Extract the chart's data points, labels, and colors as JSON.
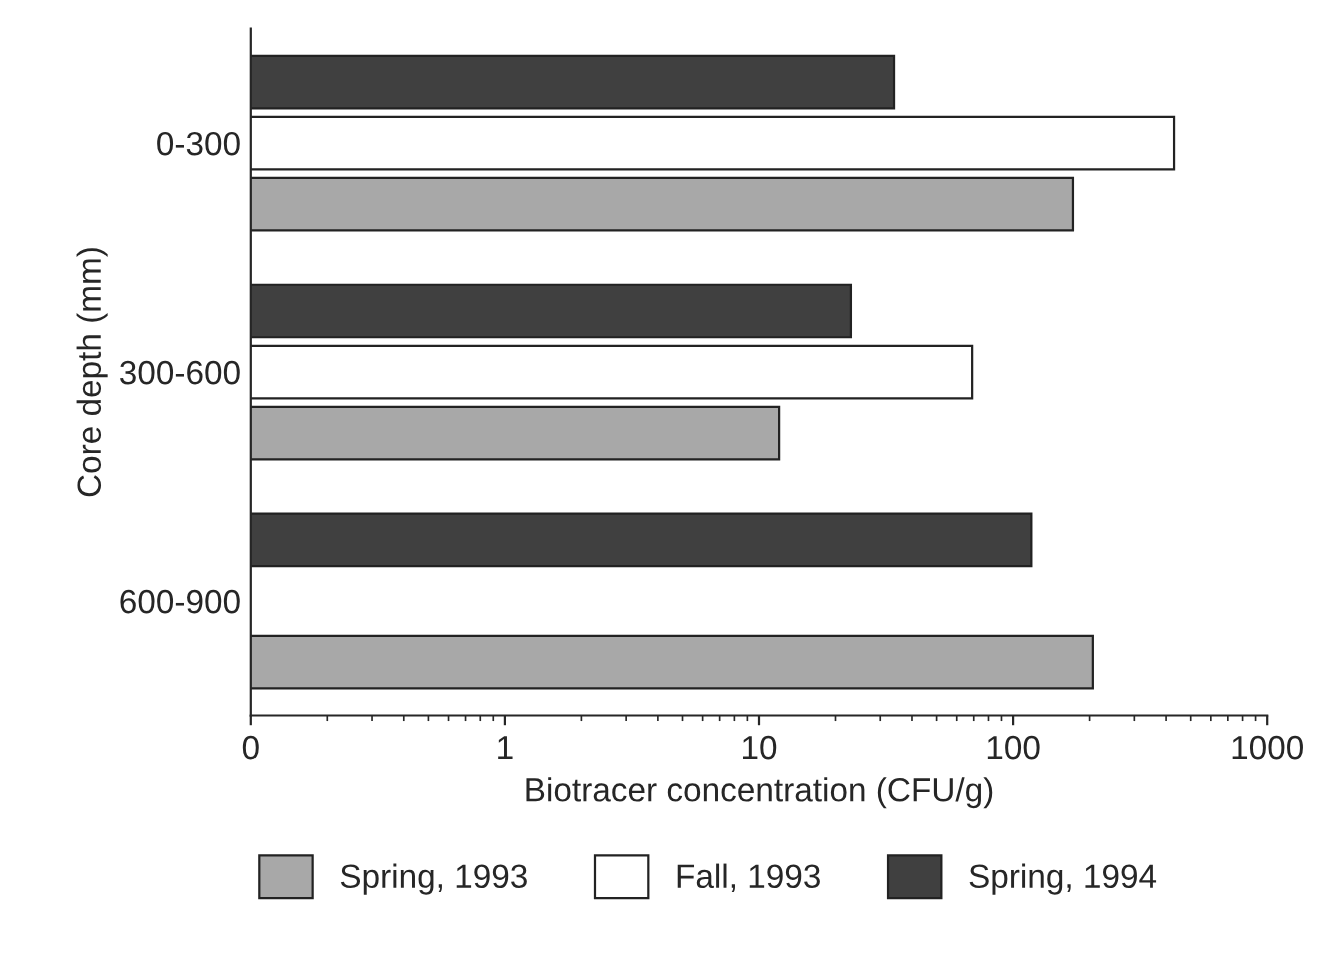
{
  "chart_data": {
    "type": "bar",
    "orientation": "horizontal",
    "xlabel": "Biotracer concentration (CFU/g)",
    "ylabel": "Core depth (mm)",
    "categories": [
      "0-300",
      "300-600",
      "600-900"
    ],
    "series": [
      {
        "name": "Spring, 1993",
        "color": "#a8a8a8",
        "values": [
          172,
          12,
          206
        ]
      },
      {
        "name": "Fall, 1993",
        "color": "#ffffff",
        "values": [
          430,
          69,
          null
        ]
      },
      {
        "name": "Spring, 1994",
        "color": "#404040",
        "values": [
          34,
          23,
          118
        ]
      }
    ],
    "log": "x",
    "xlim": [
      0.1,
      1000
    ],
    "xticks": [
      {
        "value": 0.1,
        "label": "0"
      },
      1,
      10,
      100,
      1000
    ],
    "grid": false,
    "legend": "bottom"
  }
}
